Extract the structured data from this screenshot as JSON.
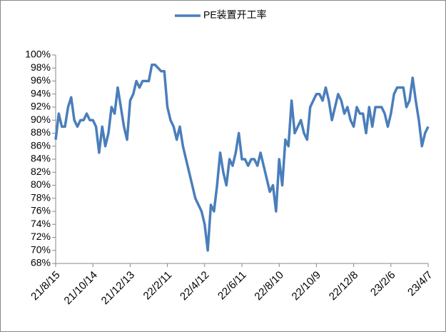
{
  "chart_data": {
    "type": "line",
    "categories": [
      "21/8/15",
      null,
      null,
      null,
      null,
      null,
      null,
      null,
      null,
      null,
      null,
      null,
      "21/10/14",
      null,
      null,
      null,
      null,
      null,
      null,
      null,
      null,
      null,
      null,
      null,
      "21/12/13",
      null,
      null,
      null,
      null,
      null,
      null,
      null,
      null,
      null,
      null,
      null,
      "22/2/11",
      null,
      null,
      null,
      null,
      null,
      null,
      null,
      null,
      null,
      null,
      null,
      "22/4/12",
      null,
      null,
      null,
      null,
      null,
      null,
      null,
      null,
      null,
      null,
      null,
      "22/6/11",
      null,
      null,
      null,
      null,
      null,
      null,
      null,
      null,
      null,
      null,
      null,
      "22/8/10",
      null,
      null,
      null,
      null,
      null,
      null,
      null,
      null,
      null,
      null,
      null,
      "22/10/9",
      null,
      null,
      null,
      null,
      null,
      null,
      null,
      null,
      null,
      null,
      null,
      "22/12/8",
      null,
      null,
      null,
      null,
      null,
      null,
      null,
      null,
      null,
      null,
      null,
      "23/2/6",
      null,
      null,
      null,
      null,
      null,
      null,
      null,
      null,
      null,
      null,
      null,
      "23/4/7"
    ],
    "series": [
      {
        "name": "PE装置开工率",
        "color": "#4a7ebb",
        "values": [
          87,
          91,
          89,
          89,
          92,
          93.5,
          90,
          89,
          90,
          90,
          91,
          90,
          90,
          89,
          85,
          89,
          86,
          88,
          92,
          91,
          95,
          92,
          89,
          87,
          93,
          94,
          96,
          95,
          96,
          96,
          96,
          98.5,
          98.5,
          98,
          97.5,
          97.5,
          92,
          90,
          89,
          87,
          89,
          86,
          84,
          82,
          80,
          78,
          77,
          76,
          74,
          70,
          77,
          76,
          80,
          85,
          82,
          80,
          84,
          83,
          85,
          88,
          84,
          84,
          83,
          84,
          84,
          83,
          85,
          83,
          81,
          79,
          80,
          76,
          84,
          80,
          87,
          86,
          93,
          88,
          89,
          90,
          88,
          87,
          92,
          93,
          94,
          94,
          93,
          95,
          93,
          90,
          92,
          94,
          93,
          91,
          92,
          90,
          89,
          92,
          91,
          91,
          88,
          92,
          89,
          92,
          92,
          92,
          91,
          89,
          91,
          94,
          95,
          95,
          95,
          92,
          93,
          96.5,
          93,
          90,
          86,
          88,
          89
        ]
      }
    ],
    "ylim": [
      68,
      100
    ],
    "yticks": [
      {
        "value": 68,
        "label": "68%"
      },
      {
        "value": 70,
        "label": "70%"
      },
      {
        "value": 72,
        "label": "72%"
      },
      {
        "value": 74,
        "label": "74%"
      },
      {
        "value": 76,
        "label": "76%"
      },
      {
        "value": 78,
        "label": "78%"
      },
      {
        "value": 80,
        "label": "80%"
      },
      {
        "value": 82,
        "label": "82%"
      },
      {
        "value": 84,
        "label": "84%"
      },
      {
        "value": 86,
        "label": "86%"
      },
      {
        "value": 88,
        "label": "88%"
      },
      {
        "value": 90,
        "label": "90%"
      },
      {
        "value": 92,
        "label": "92%"
      },
      {
        "value": 94,
        "label": "94%"
      },
      {
        "value": 96,
        "label": "96%"
      },
      {
        "value": 98,
        "label": "98%"
      },
      {
        "value": 100,
        "label": "100%"
      }
    ],
    "grid": false,
    "legend": "top"
  }
}
